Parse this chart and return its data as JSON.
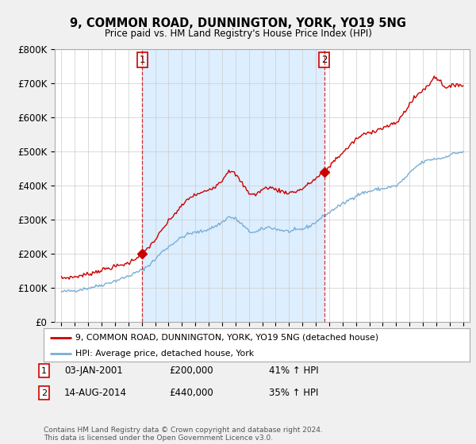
{
  "title": "9, COMMON ROAD, DUNNINGTON, YORK, YO19 5NG",
  "subtitle": "Price paid vs. HM Land Registry's House Price Index (HPI)",
  "legend_label_red": "9, COMMON ROAD, DUNNINGTON, YORK, YO19 5NG (detached house)",
  "legend_label_blue": "HPI: Average price, detached house, York",
  "annotation1_date": "03-JAN-2001",
  "annotation1_price": "£200,000",
  "annotation1_hpi": "41% ↑ HPI",
  "annotation2_date": "14-AUG-2014",
  "annotation2_price": "£440,000",
  "annotation2_hpi": "35% ↑ HPI",
  "footnote": "Contains HM Land Registry data © Crown copyright and database right 2024.\nThis data is licensed under the Open Government Licence v3.0.",
  "red_color": "#cc0000",
  "blue_color": "#7aaed6",
  "shade_color": "#ddeeff",
  "background_color": "#f0f0f0",
  "plot_bg_color": "#ffffff",
  "grid_color": "#cccccc",
  "ylim": [
    0,
    800000
  ],
  "yticks": [
    0,
    100000,
    200000,
    300000,
    400000,
    500000,
    600000,
    700000,
    800000
  ],
  "ytick_labels": [
    "£0",
    "£100K",
    "£200K",
    "£300K",
    "£400K",
    "£500K",
    "£600K",
    "£700K",
    "£800K"
  ],
  "marker1_x": 2001.04,
  "marker1_y": 200000,
  "marker2_x": 2014.62,
  "marker2_y": 440000,
  "xmin": 1994.5,
  "xmax": 2025.5
}
